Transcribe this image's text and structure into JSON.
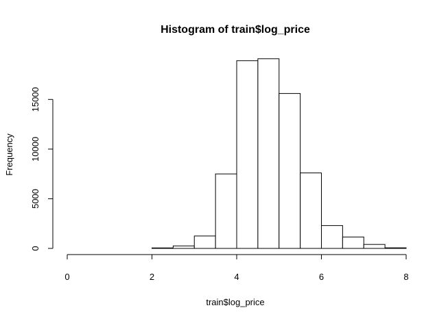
{
  "chart_data": {
    "type": "bar",
    "title": "Histogram of train$log_price",
    "xlabel": "train$log_price",
    "ylabel": "Frequency",
    "xlim": [
      0,
      8
    ],
    "ylim": [
      0,
      19500
    ],
    "x_ticks": [
      0,
      2,
      4,
      6,
      8
    ],
    "y_ticks": [
      0,
      5000,
      10000,
      15000
    ],
    "bin_width": 0.5,
    "bins": [
      {
        "x0": 0.0,
        "x1": 0.5,
        "count": 0
      },
      {
        "x0": 0.5,
        "x1": 1.0,
        "count": 0
      },
      {
        "x0": 1.0,
        "x1": 1.5,
        "count": 0
      },
      {
        "x0": 1.5,
        "x1": 2.0,
        "count": 0
      },
      {
        "x0": 2.0,
        "x1": 2.5,
        "count": 50
      },
      {
        "x0": 2.5,
        "x1": 3.0,
        "count": 250
      },
      {
        "x0": 3.0,
        "x1": 3.5,
        "count": 1250
      },
      {
        "x0": 3.5,
        "x1": 4.0,
        "count": 7500
      },
      {
        "x0": 4.0,
        "x1": 4.5,
        "count": 18900
      },
      {
        "x0": 4.5,
        "x1": 5.0,
        "count": 19100
      },
      {
        "x0": 5.0,
        "x1": 5.5,
        "count": 15600
      },
      {
        "x0": 5.5,
        "x1": 6.0,
        "count": 7600
      },
      {
        "x0": 6.0,
        "x1": 6.5,
        "count": 2300
      },
      {
        "x0": 6.5,
        "x1": 7.0,
        "count": 1150
      },
      {
        "x0": 7.0,
        "x1": 7.5,
        "count": 400
      },
      {
        "x0": 7.5,
        "x1": 8.0,
        "count": 60
      }
    ],
    "grid": false,
    "bar_fill": "#ffffff",
    "bar_stroke": "#000000"
  }
}
